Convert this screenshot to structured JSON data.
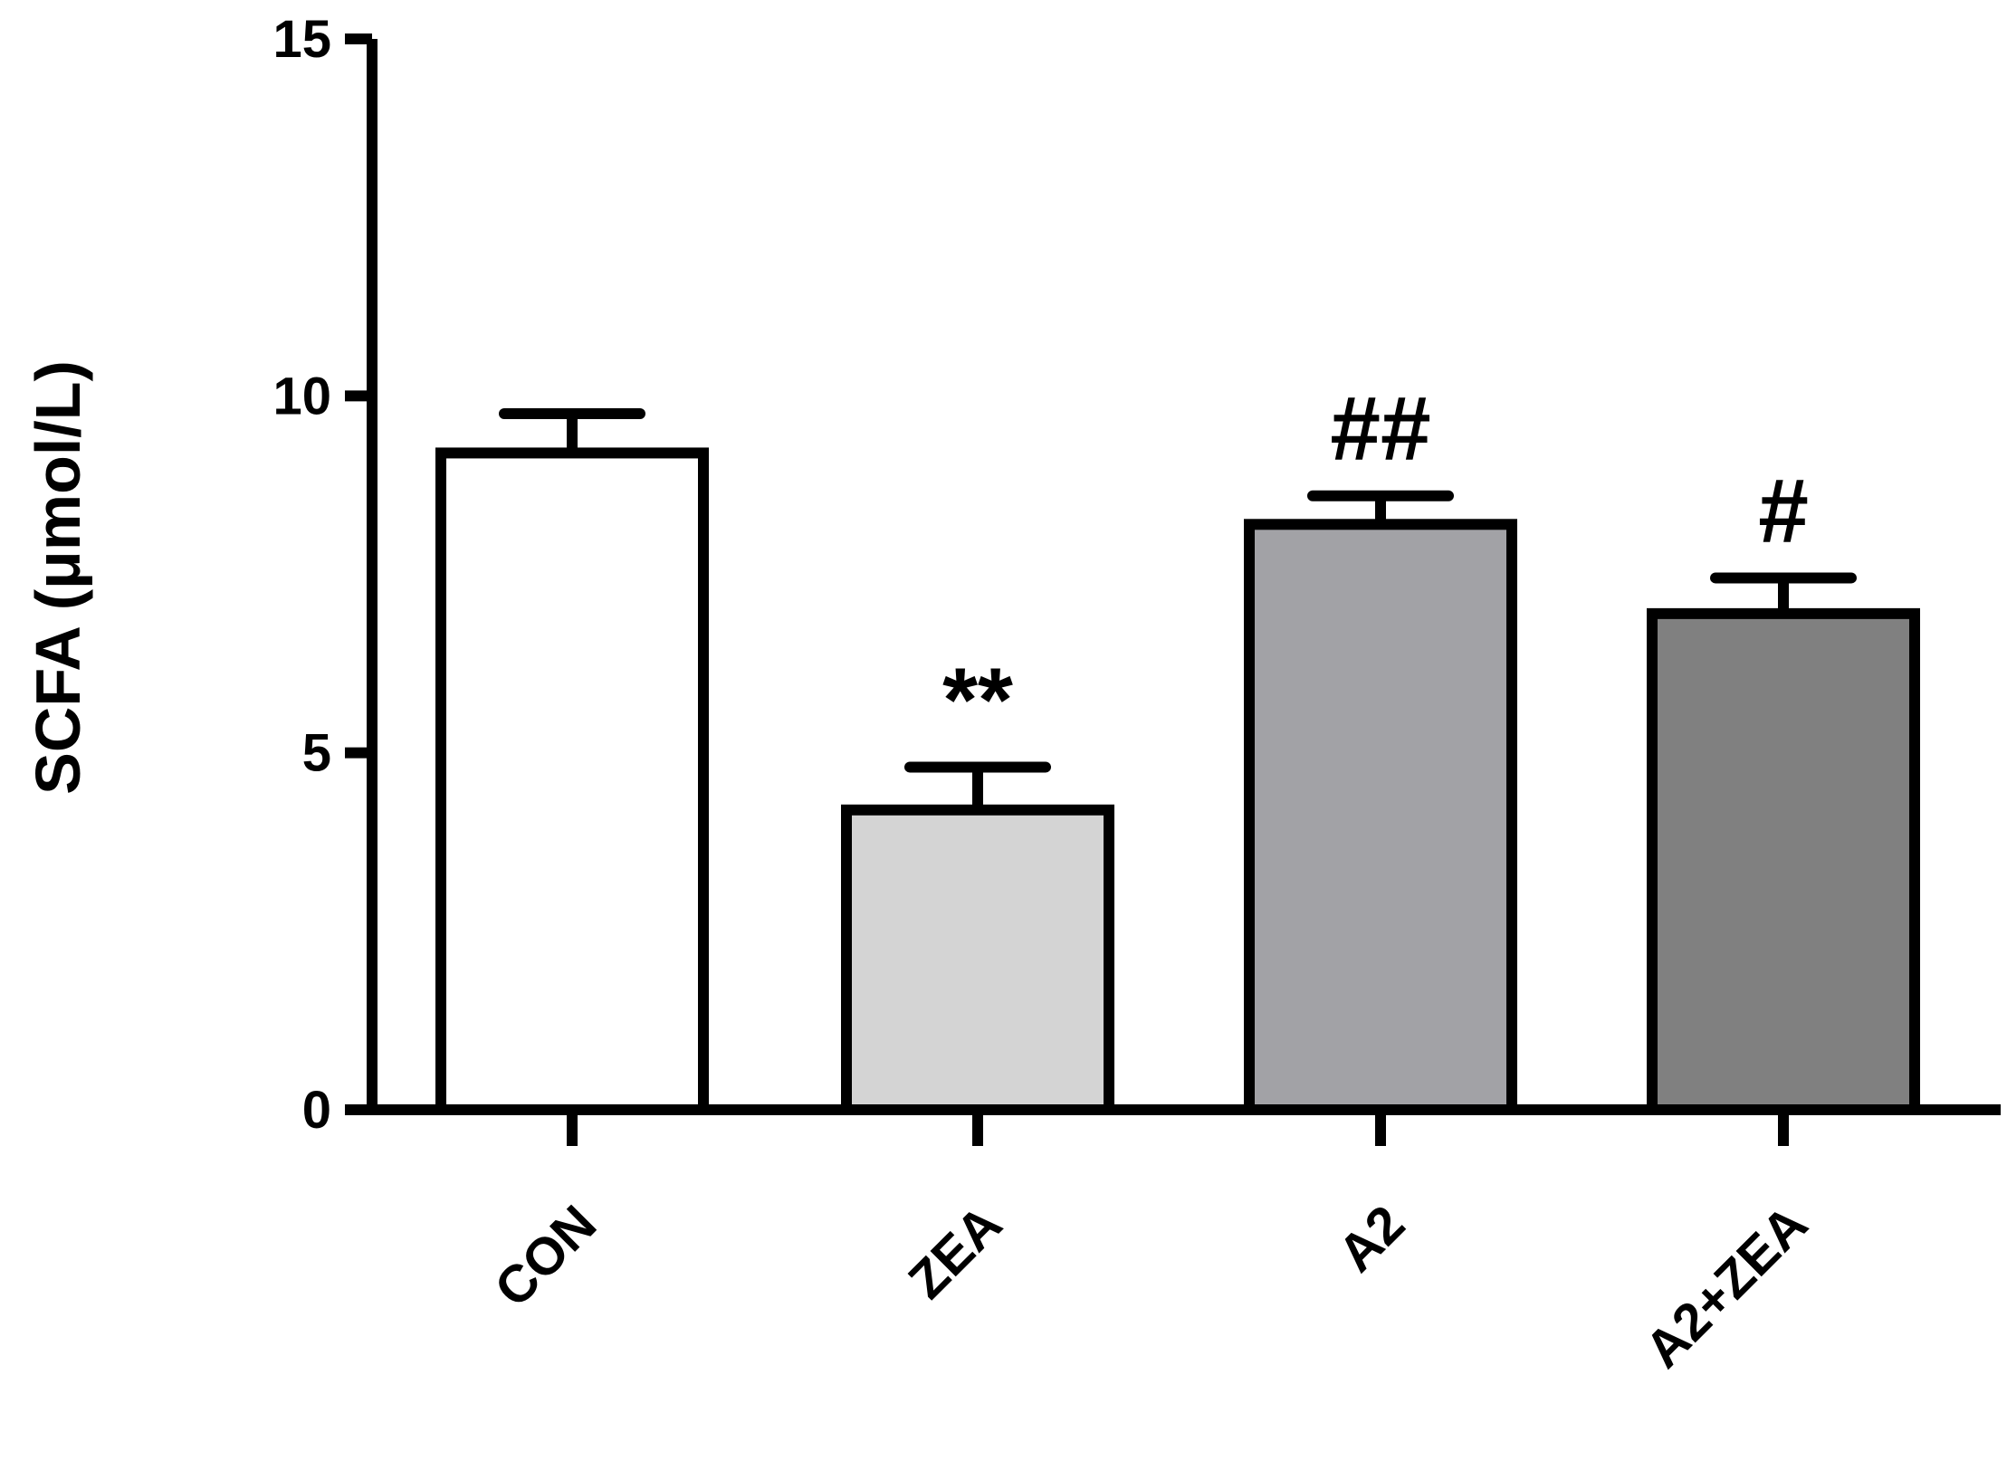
{
  "chart_data": {
    "type": "bar",
    "categories": [
      "CON",
      "ZEA",
      "A2",
      "A2+ZEA"
    ],
    "values": [
      9.2,
      4.2,
      8.2,
      6.95
    ],
    "errors": [
      0.55,
      0.6,
      0.4,
      0.5
    ],
    "annotations": [
      "",
      "**",
      "##",
      "#"
    ],
    "bar_colors": [
      "#ffffff",
      "#d4d4d4",
      "#a2a2a6",
      "#808080"
    ],
    "xlabel": "",
    "ylabel": "SCFA (μmol/L)",
    "ylim": [
      0,
      15
    ],
    "yticks": [
      0,
      5,
      10,
      15
    ],
    "ytick_labels": [
      "0",
      "5",
      "10",
      "15"
    ],
    "grid": false
  }
}
